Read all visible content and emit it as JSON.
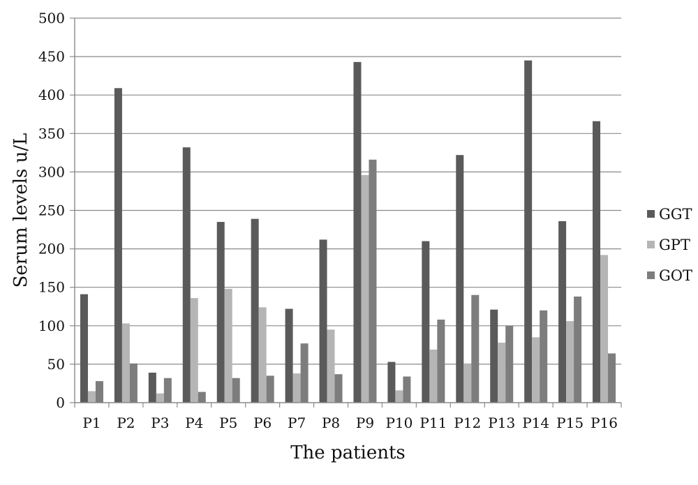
{
  "chart_data": {
    "type": "bar",
    "title": "",
    "xlabel": "The patients",
    "ylabel": "Serum levels  u/L",
    "ylim": [
      0,
      500
    ],
    "yticks": [
      "0",
      "50",
      "100",
      "150",
      "200",
      "250",
      "300",
      "350",
      "400",
      "450",
      "500"
    ],
    "grid": true,
    "legend_position": "right",
    "categories": [
      "P1",
      "P2",
      "P3",
      "P4",
      "P5",
      "P6",
      "P7",
      "P8",
      "P9",
      "P10",
      "P11",
      "P12",
      "P13",
      "P14",
      "P15",
      "P16"
    ],
    "series": [
      {
        "name": "GGT",
        "color": "#5a5a5a",
        "values": [
          141,
          409,
          39,
          332,
          235,
          239,
          122,
          212,
          443,
          53,
          210,
          322,
          121,
          445,
          236,
          366
        ]
      },
      {
        "name": "GPT",
        "color": "#b5b5b5",
        "values": [
          15,
          103,
          12,
          136,
          148,
          124,
          38,
          95,
          296,
          16,
          69,
          51,
          78,
          85,
          106,
          192
        ]
      },
      {
        "name": "GOT",
        "color": "#7d7d7d",
        "values": [
          28,
          51,
          32,
          14,
          32,
          35,
          77,
          37,
          316,
          34,
          108,
          140,
          100,
          120,
          138,
          64
        ]
      }
    ]
  }
}
